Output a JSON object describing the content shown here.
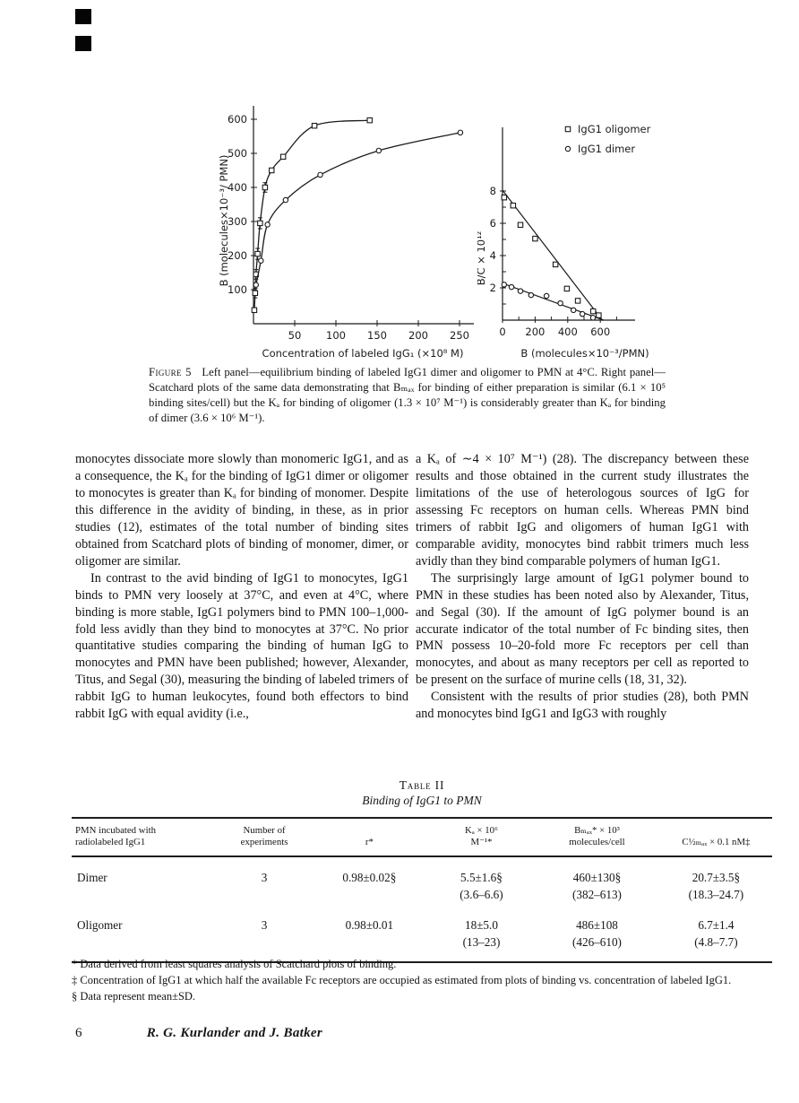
{
  "page": {
    "number": "6",
    "running_title": "R. G. Kurlander and J. Batker"
  },
  "figure_caption": {
    "label": "Figure 5",
    "text": "Left panel—equilibrium binding of labeled IgG1 dimer and oligomer to PMN at 4°C. Right panel—Scatchard plots of the same data demonstrating that Bₘₐₓ for binding of either preparation is similar (6.1 × 10⁵ binding sites/cell) but the Kₐ for binding of oligomer (1.3 × 10⁷ M⁻¹) is considerably greater than Kₐ for binding of dimer (3.6 × 10⁶ M⁻¹)."
  },
  "columns": {
    "left": [
      "monocytes dissociate more slowly than monomeric IgG1, and as a consequence, the Kₐ for the binding of IgG1 dimer or oligomer to monocytes is greater than Kₐ for binding of monomer. Despite this difference in the avidity of binding, in these, as in prior studies (12), estimates of the total number of binding sites obtained from Scatchard plots of binding of monomer, dimer, or oligomer are similar.",
      "In contrast to the avid binding of IgG1 to monocytes, IgG1 binds to PMN very loosely at 37°C, and even at 4°C, where binding is more stable, IgG1 polymers bind to PMN 100–1,000-fold less avidly than they bind to monocytes at 37°C. No prior quantitative studies comparing the binding of human IgG to monocytes and PMN have been published; however, Alexander, Titus, and Segal (30), measuring the binding of labeled trimers of rabbit IgG to human leukocytes, found both effectors to bind rabbit IgG with equal avidity (i.e.,"
    ],
    "right": [
      "a Kₐ of ∼4 × 10⁷ M⁻¹) (28). The discrepancy between these results and those obtained in the current study illustrates the limitations of the use of heterologous sources of IgG for assessing Fc receptors on human cells. Whereas PMN bind trimers of rabbit IgG and oligomers of human IgG1 with comparable avidity, monocytes bind rabbit trimers much less avidly than they bind comparable polymers of human IgG1.",
      "The surprisingly large amount of IgG1 polymer bound to PMN in these studies has been noted also by Alexander, Titus, and Segal (30). If the amount of IgG polymer bound is an accurate indicator of the total number of Fc binding sites, then PMN possess 10–20-fold more Fc receptors per cell than monocytes, and about as many receptors per cell as reported to be present on the surface of murine cells (18, 31, 32).",
      "Consistent with the results of prior studies (28), both PMN and monocytes bind IgG1 and IgG3 with roughly"
    ]
  },
  "table": {
    "title": "Table II",
    "subtitle": "Binding of IgG1 to PMN",
    "columns": [
      [
        "PMN incubated with",
        "radiolabeled IgG1"
      ],
      [
        "Number of",
        "experiments"
      ],
      [
        "r*"
      ],
      [
        "Kₐ × 10⁶",
        "M⁻¹*"
      ],
      [
        "Bₘₐₓ* × 10³",
        "molecules/cell"
      ],
      [
        "C½ₘₐₓ × 0.1 nM‡"
      ]
    ],
    "rows": [
      {
        "cells": [
          {
            "main": "Dimer"
          },
          {
            "main": "3"
          },
          {
            "main": "0.98±0.02§"
          },
          {
            "main": "5.5±1.6§",
            "range": "(3.6–6.6)"
          },
          {
            "main": "460±130§",
            "range": "(382–613)"
          },
          {
            "main": "20.7±3.5§",
            "range": "(18.3–24.7)"
          }
        ]
      },
      {
        "cells": [
          {
            "main": "Oligomer"
          },
          {
            "main": "3"
          },
          {
            "main": "0.98±0.01"
          },
          {
            "main": "18±5.0",
            "range": "(13–23)"
          },
          {
            "main": "486±108",
            "range": "(426–610)"
          },
          {
            "main": "6.7±1.4",
            "range": "(4.8–7.7)"
          }
        ]
      }
    ]
  },
  "footnotes": [
    "* Data derived from least squares analysis of Scatchard plots of binding.",
    "‡ Concentration of IgG1 at which half the available Fc receptors are occupied as estimated from plots of binding vs. concentration of labeled IgG1.",
    "§ Data represent mean±SD."
  ],
  "chart_data": [
    {
      "type": "line",
      "panel": "left",
      "title": "",
      "xlabel": "Concentration of labeled IgG₁ (×10⁸ M)",
      "ylabel": "B (molecules×10⁻³/ PMN)",
      "xlim": [
        0,
        265
      ],
      "ylim": [
        0,
        630
      ],
      "xticks": [
        50,
        100,
        150,
        200,
        250
      ],
      "yticks": [
        100,
        200,
        300,
        400,
        500,
        600
      ],
      "grid": false,
      "series": [
        {
          "name": "IgG1 oligomer",
          "marker": "square",
          "smooth": true,
          "x": [
            1,
            2,
            3,
            5,
            8,
            14,
            22,
            36,
            74,
            141
          ],
          "y": [
            40,
            90,
            145,
            205,
            295,
            400,
            450,
            490,
            581,
            597
          ],
          "yerr": [
            0,
            14,
            14,
            16,
            16,
            14,
            0,
            0,
            0,
            0
          ]
        },
        {
          "name": "IgG1 dimer",
          "marker": "circle",
          "smooth": true,
          "x": [
            3,
            9,
            17,
            39,
            81,
            152,
            251
          ],
          "y": [
            114,
            185,
            291,
            363,
            437,
            508,
            561
          ]
        }
      ]
    },
    {
      "type": "scatter",
      "panel": "right",
      "title": "",
      "xlabel": "B (molecules×10⁻³/PMN)",
      "ylabel": "B/C × 10¹²",
      "xlim": [
        0,
        800
      ],
      "ylim": [
        0,
        9.5
      ],
      "xticks": [
        0,
        200,
        400,
        600
      ],
      "xticks_minor": [
        100,
        300,
        500,
        700
      ],
      "yticks": [
        2,
        4,
        6,
        8
      ],
      "yticks_minor": [
        1,
        3,
        5,
        7
      ],
      "grid": false,
      "legend_position": "top-right",
      "series": [
        {
          "name": "IgG1 oligomer",
          "marker": "square",
          "x": [
            10,
            65,
            110,
            200,
            325,
            395,
            462,
            556,
            590
          ],
          "y": [
            7.6,
            7.1,
            5.9,
            5.05,
            3.45,
            1.95,
            1.2,
            0.55,
            0.3
          ],
          "fit_line": {
            "x": [
              0,
              612
            ],
            "y": [
              8.05,
              0
            ]
          }
        },
        {
          "name": "IgG1 dimer",
          "marker": "circle",
          "x": [
            10,
            55,
            110,
            175,
            270,
            355,
            435,
            490,
            555
          ],
          "y": [
            2.2,
            2.05,
            1.8,
            1.55,
            1.5,
            1.05,
            0.62,
            0.38,
            0.15
          ],
          "fit_line": {
            "x": [
              0,
              620
            ],
            "y": [
              2.28,
              0
            ]
          }
        }
      ]
    }
  ]
}
